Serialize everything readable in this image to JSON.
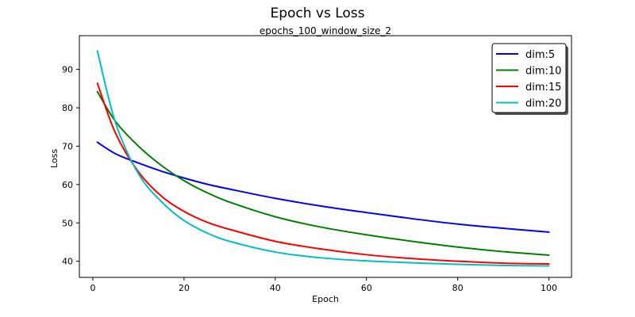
{
  "chart_data": {
    "type": "line",
    "title": "Epoch vs Loss",
    "subtitle": "epochs_100_window_size_2",
    "xlabel": "Epoch",
    "ylabel": "Loss",
    "xlim": [
      -2.95,
      104.95
    ],
    "ylim": [
      35.8,
      98.8
    ],
    "xticks": [
      0,
      20,
      40,
      60,
      80,
      100
    ],
    "yticks": [
      40,
      50,
      60,
      70,
      80,
      90
    ],
    "x": [
      1,
      5,
      10,
      15,
      20,
      25,
      30,
      40,
      50,
      60,
      70,
      80,
      90,
      100
    ],
    "legend": "top-right",
    "series": [
      {
        "name": "dim:5",
        "color": "#0000ff",
        "values": [
          71.0,
          68.0,
          65.6,
          63.5,
          61.7,
          60.1,
          58.8,
          56.4,
          54.4,
          52.7,
          51.1,
          49.7,
          48.6,
          47.6
        ]
      },
      {
        "name": "dim:10",
        "color": "#008000",
        "values": [
          84.2,
          76.4,
          70.0,
          65.0,
          61.0,
          57.9,
          55.4,
          51.6,
          48.9,
          46.9,
          45.2,
          43.7,
          42.5,
          41.6
        ]
      },
      {
        "name": "dim:15",
        "color": "#ff0000",
        "values": [
          86.4,
          73.3,
          63.3,
          57.0,
          53.0,
          50.2,
          48.3,
          45.2,
          43.2,
          41.7,
          40.7,
          40.0,
          39.5,
          39.3
        ]
      },
      {
        "name": "dim:20",
        "color": "#00bfbf",
        "values": [
          94.8,
          76.0,
          62.8,
          55.6,
          50.6,
          47.4,
          45.2,
          42.4,
          40.9,
          40.1,
          39.6,
          39.2,
          38.9,
          38.8
        ]
      }
    ]
  }
}
